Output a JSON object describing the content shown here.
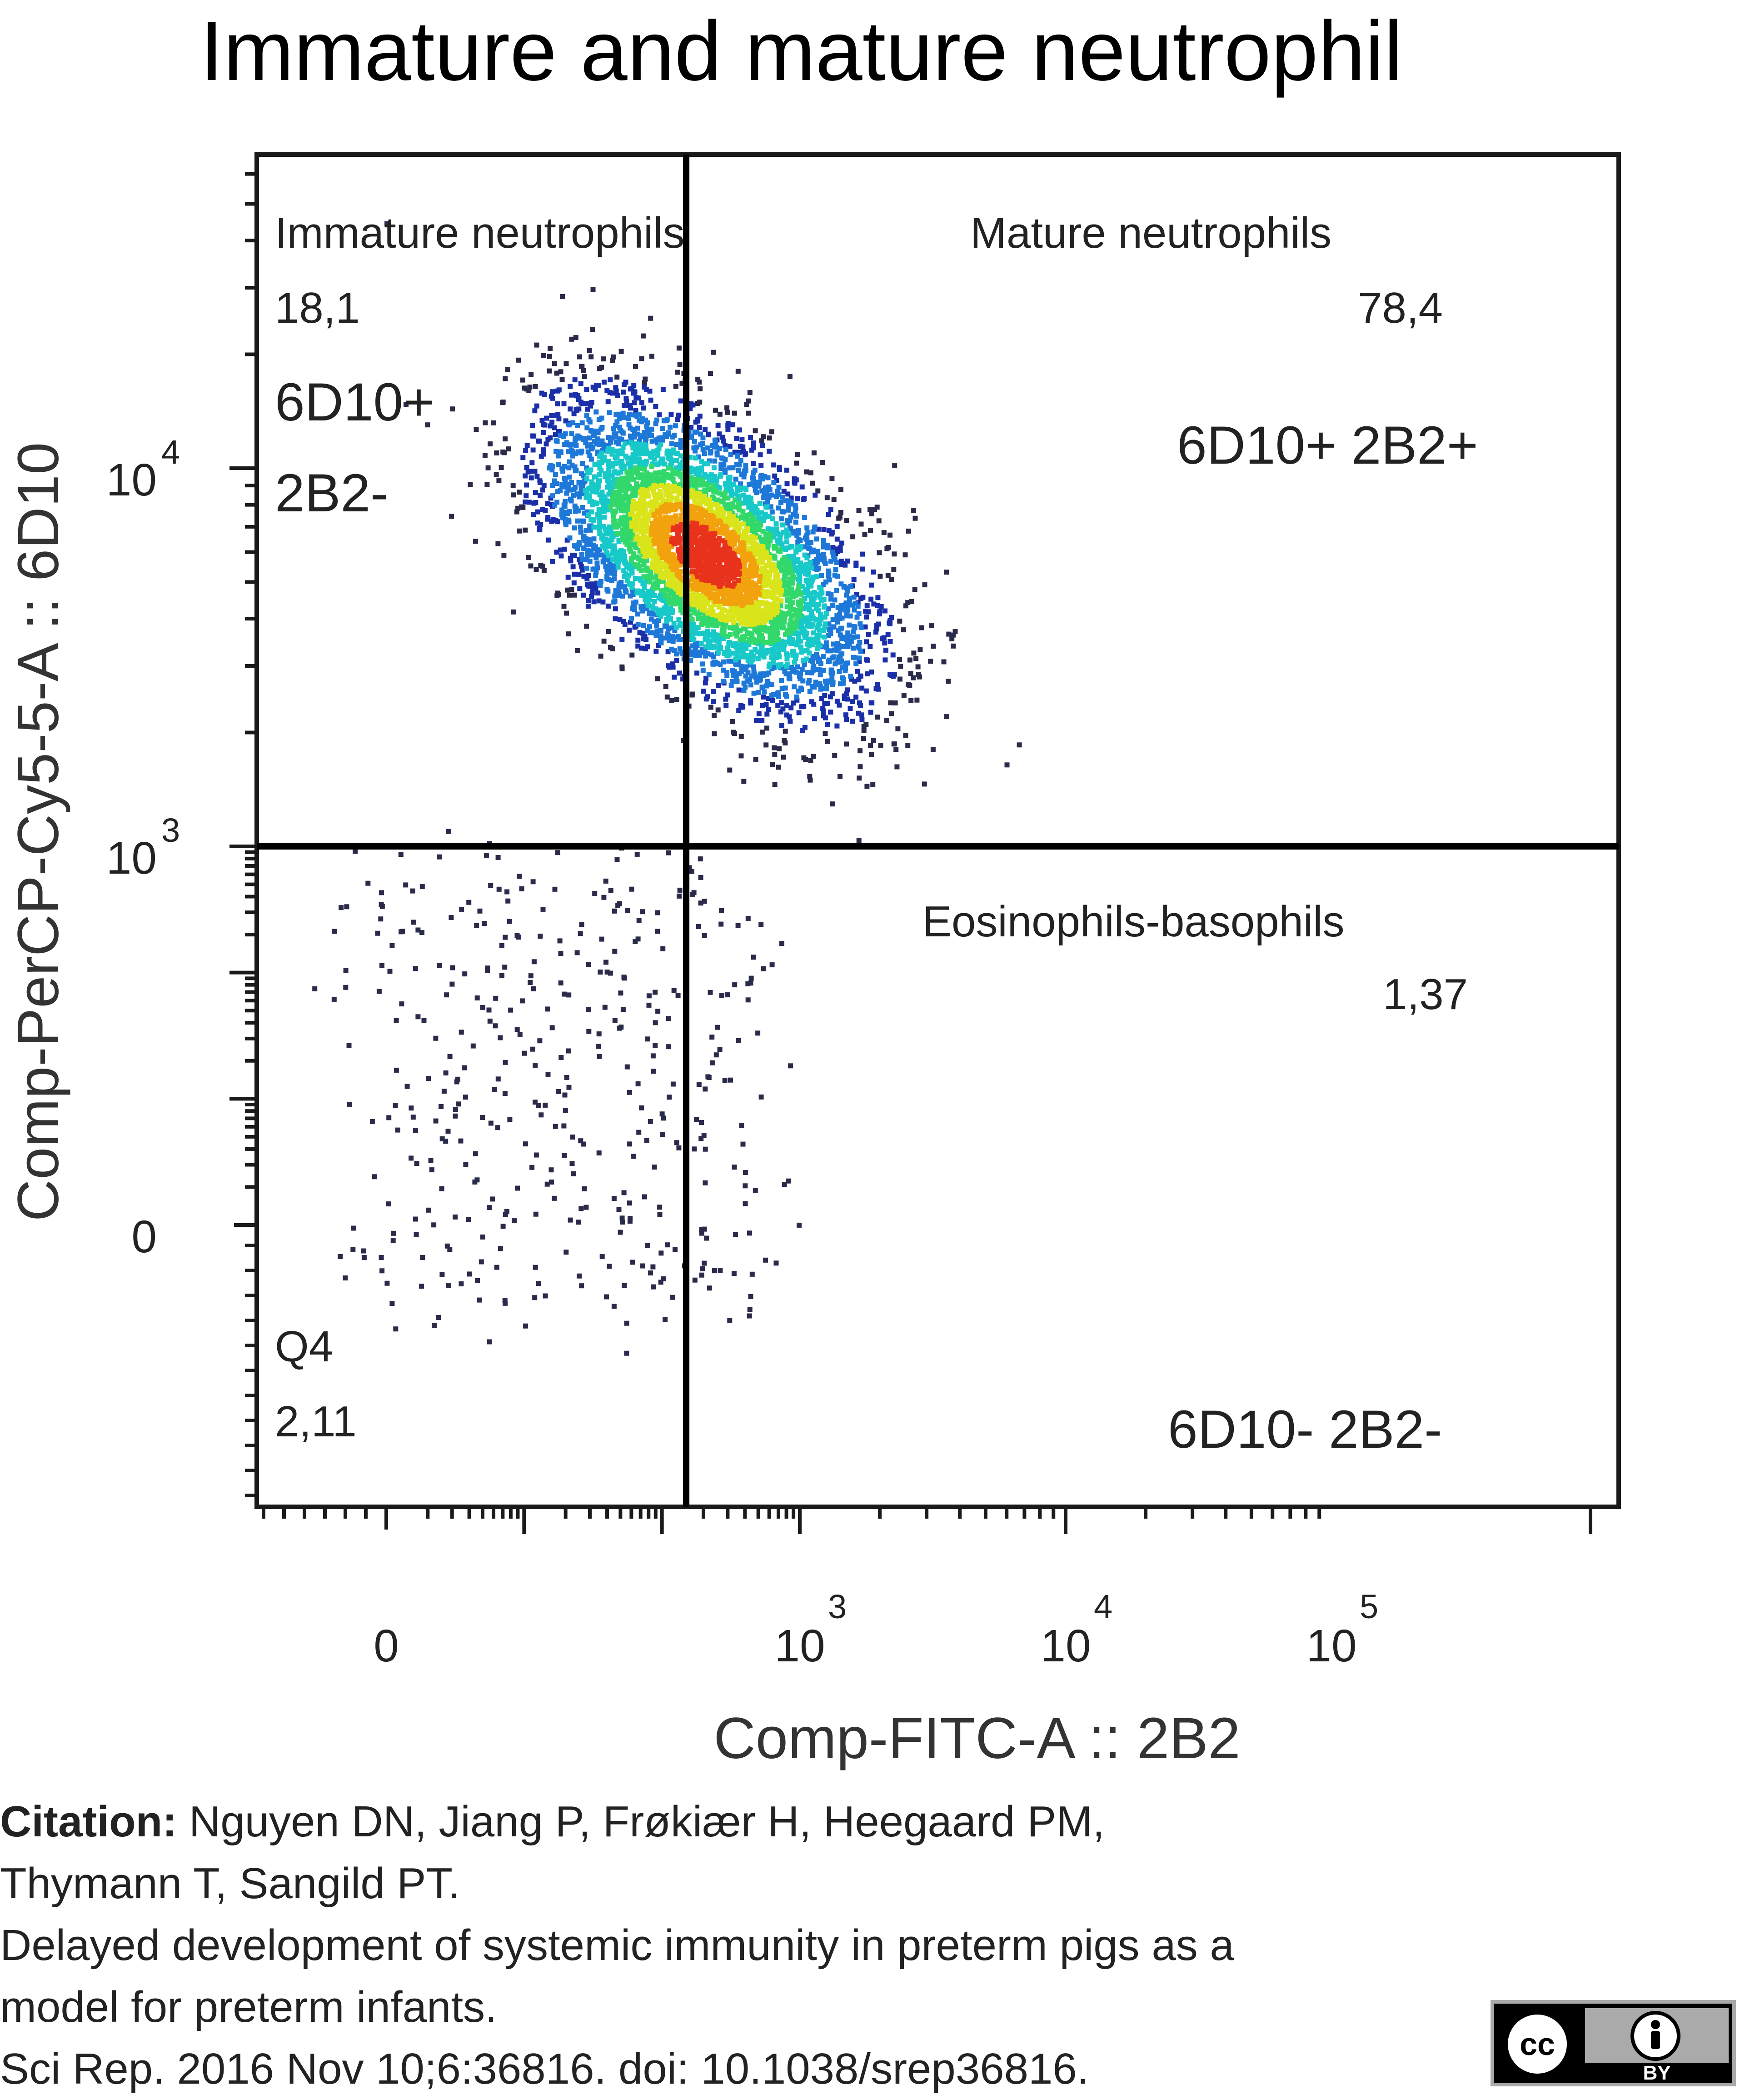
{
  "chart_data": {
    "type": "scatter",
    "title": "Immature and mature neutrophil",
    "xlabel": "Comp-FITC-A :: 2B2",
    "ylabel": "Comp-PerCP-Cy5-5-A :: 6D10",
    "x_scale": "biexponential",
    "y_scale": "biexponential",
    "x_ticks": [
      {
        "value": 0,
        "label": "0"
      },
      {
        "value": 1000,
        "label": "10",
        "sup": "3"
      },
      {
        "value": 10000,
        "label": "10",
        "sup": "4"
      },
      {
        "value": 100000,
        "label": "10",
        "sup": "5"
      }
    ],
    "y_ticks": [
      {
        "value": 0,
        "label": "0"
      },
      {
        "value": 1000,
        "label": "10",
        "sup": "3"
      },
      {
        "value": 10000,
        "label": "10",
        "sup": "4"
      }
    ],
    "gates": {
      "x": 150,
      "y": 1000
    },
    "quadrants": [
      {
        "name": "Immature neutrophils",
        "value": "18,1",
        "phenotype": [
          "6D10+",
          "2B2-"
        ]
      },
      {
        "name": "Mature neutrophils",
        "value": "78,4",
        "phenotype": [
          "6D10+ 2B2+"
        ]
      },
      {
        "name": "Eosinophils-basophils",
        "value": "1,37",
        "phenotype": []
      },
      {
        "name": "Q4",
        "value": "2,11",
        "phenotype": [
          "6D10- 2B2-"
        ]
      }
    ],
    "density_peak": {
      "x": 200,
      "y": 6000
    },
    "grid": false,
    "legend": "none"
  },
  "citation": {
    "label": "Citation:",
    "authors_line1": "Nguyen DN, Jiang P, Frøkiær H, Heegaard PM,",
    "authors_line2": "Thymann T, Sangild PT.",
    "title_line1": "Delayed development of systemic immunity in preterm pigs as a",
    "title_line2": "model for preterm infants.",
    "reference": "Sci Rep. 2016 Nov 10;6:36816. doi: 10.1038/srep36816."
  },
  "license_badge": {
    "left_text": "cc",
    "right_text": "BY"
  }
}
